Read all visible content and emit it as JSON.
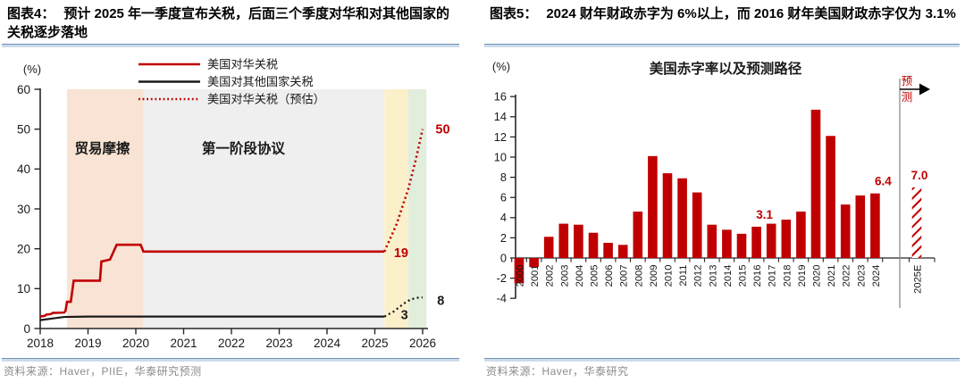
{
  "left_chart": {
    "figure_label": "图表4：",
    "title": "预计 2025 年一季度宣布关税，后面三个季度对华和对其他国家的关税逐步落地",
    "source": "资料来源：Haver，PIIE，华泰研究预测"
  },
  "right_chart": {
    "figure_label": "图表5：",
    "title": "2024 财年财政赤字为 6%以上，而 2016 财年美国财政赤字仅为 3.1%",
    "source": "资料来源：Haver，华泰研究"
  },
  "colors": {
    "red": "#C00000",
    "black": "#1A1A1A",
    "axis": "#262626",
    "rule_blue": "#6f93b4"
  },
  "chart_data": [
    {
      "type": "line",
      "unit_label": "(%)",
      "x_ticks": [
        2018,
        2019,
        2020,
        2021,
        2022,
        2023,
        2024,
        2025,
        2026
      ],
      "y_ticks": [
        0,
        10,
        20,
        30,
        40,
        50,
        60
      ],
      "ylim": [
        0,
        60
      ],
      "xlim": [
        2018,
        2026.15
      ],
      "legend": [
        {
          "label": "美国对华关税",
          "color": "#C00000",
          "style": "solid"
        },
        {
          "label": "美国对其他国家关税",
          "color": "#1A1A1A",
          "style": "solid"
        },
        {
          "label": "美国对华关税（预估）",
          "color": "#C00000",
          "style": "dotted"
        }
      ],
      "regions": [
        {
          "label": "贸易摩擦",
          "from": 2018.56,
          "to": 2020.16,
          "color": "#F9E3D4",
          "label_x": 2019.3,
          "label_y": 44
        },
        {
          "label": "第一阶段协议",
          "from": 2020.16,
          "to": 2025.2,
          "color": "#EFEFEF",
          "label_x": 2022.25,
          "label_y": 44
        },
        {
          "label": "",
          "from": 2025.2,
          "to": 2025.7,
          "color": "#FCF0CB"
        },
        {
          "label": "",
          "from": 2025.7,
          "to": 2026.08,
          "color": "#E2EEDC"
        }
      ],
      "series": [
        {
          "name": "美国对华关税",
          "color": "#C00000",
          "style": "solid",
          "width": 2.6,
          "points": [
            [
              2018,
              3.0
            ],
            [
              2018.1,
              3.2
            ],
            [
              2018.13,
              3.5
            ],
            [
              2018.22,
              3.6
            ],
            [
              2018.26,
              3.9
            ],
            [
              2018.5,
              4.0
            ],
            [
              2018.53,
              4.4
            ],
            [
              2018.56,
              6.7
            ],
            [
              2018.64,
              6.7
            ],
            [
              2018.7,
              12
            ],
            [
              2019.25,
              12
            ],
            [
              2019.28,
              16.8
            ],
            [
              2019.46,
              17.3
            ],
            [
              2019.6,
              21
            ],
            [
              2020.1,
              21
            ],
            [
              2020.16,
              19.3
            ],
            [
              2025.2,
              19.3
            ]
          ]
        },
        {
          "name": "美国对其他国家关税",
          "color": "#1A1A1A",
          "style": "solid",
          "width": 2.2,
          "points": [
            [
              2018,
              2.1
            ],
            [
              2018.25,
              2.5
            ],
            [
              2018.5,
              2.9
            ],
            [
              2019,
              3.0
            ],
            [
              2025.2,
              3.0
            ]
          ]
        },
        {
          "name": "美国对华关税（预估）",
          "color": "#C00000",
          "style": "dotted",
          "width": 2.6,
          "points": [
            [
              2025.2,
              19.3
            ],
            [
              2025.45,
              26
            ],
            [
              2025.7,
              35
            ],
            [
              2025.85,
              42
            ],
            [
              2026,
              50
            ]
          ]
        },
        {
          "name": "us-other-tariff-forecast",
          "color": "#1A1A1A",
          "style": "dotted",
          "width": 2.2,
          "points": [
            [
              2025.2,
              3.0
            ],
            [
              2025.4,
              4.3
            ],
            [
              2025.6,
              6.2
            ],
            [
              2025.75,
              7.3
            ],
            [
              2025.88,
              7.7
            ],
            [
              2026,
              7.8
            ]
          ]
        }
      ],
      "value_labels": [
        {
          "text": "50",
          "x": 2026.42,
          "y": 50,
          "color": "#C00000"
        },
        {
          "text": "19",
          "x": 2025.55,
          "y": 19.0,
          "color": "#C00000"
        },
        {
          "text": "8",
          "x": 2026.38,
          "y": 7.0,
          "color": "#1A1A1A"
        },
        {
          "text": "3",
          "x": 2025.62,
          "y": 3.5,
          "color": "#1A1A1A"
        }
      ]
    },
    {
      "type": "bar",
      "chart_title": "美国赤字率以及预测路径",
      "unit_label": "(%)",
      "forecast_label": "预测",
      "bar_color": "#C00000",
      "categories": [
        "2000",
        "2001",
        "2002",
        "2003",
        "2004",
        "2005",
        "2006",
        "2007",
        "2008",
        "2009",
        "2010",
        "2011",
        "2012",
        "2013",
        "2014",
        "2015",
        "2016",
        "2017",
        "2018",
        "2019",
        "2020",
        "2021",
        "2022",
        "2023",
        "2024",
        "2025E"
      ],
      "values": [
        -2.5,
        -0.9,
        2.1,
        3.4,
        3.3,
        2.5,
        1.5,
        1.3,
        4.6,
        10.1,
        8.4,
        7.9,
        6.5,
        3.3,
        2.8,
        2.4,
        3.1,
        3.4,
        3.8,
        4.6,
        14.7,
        12.1,
        5.3,
        6.2,
        6.4,
        7.0
      ],
      "forecast_categories": [
        "2025E"
      ],
      "value_labels": [
        {
          "category": "2016",
          "text": "3.1",
          "dx": 9
        },
        {
          "category": "2024",
          "text": "6.4",
          "dx": 9
        },
        {
          "category": "2025E",
          "text": "7.0",
          "dx": 3
        }
      ],
      "y_ticks": [
        -4,
        -2,
        0,
        2,
        4,
        6,
        8,
        10,
        12,
        14,
        16
      ],
      "ylim": [
        -4,
        16
      ]
    }
  ]
}
